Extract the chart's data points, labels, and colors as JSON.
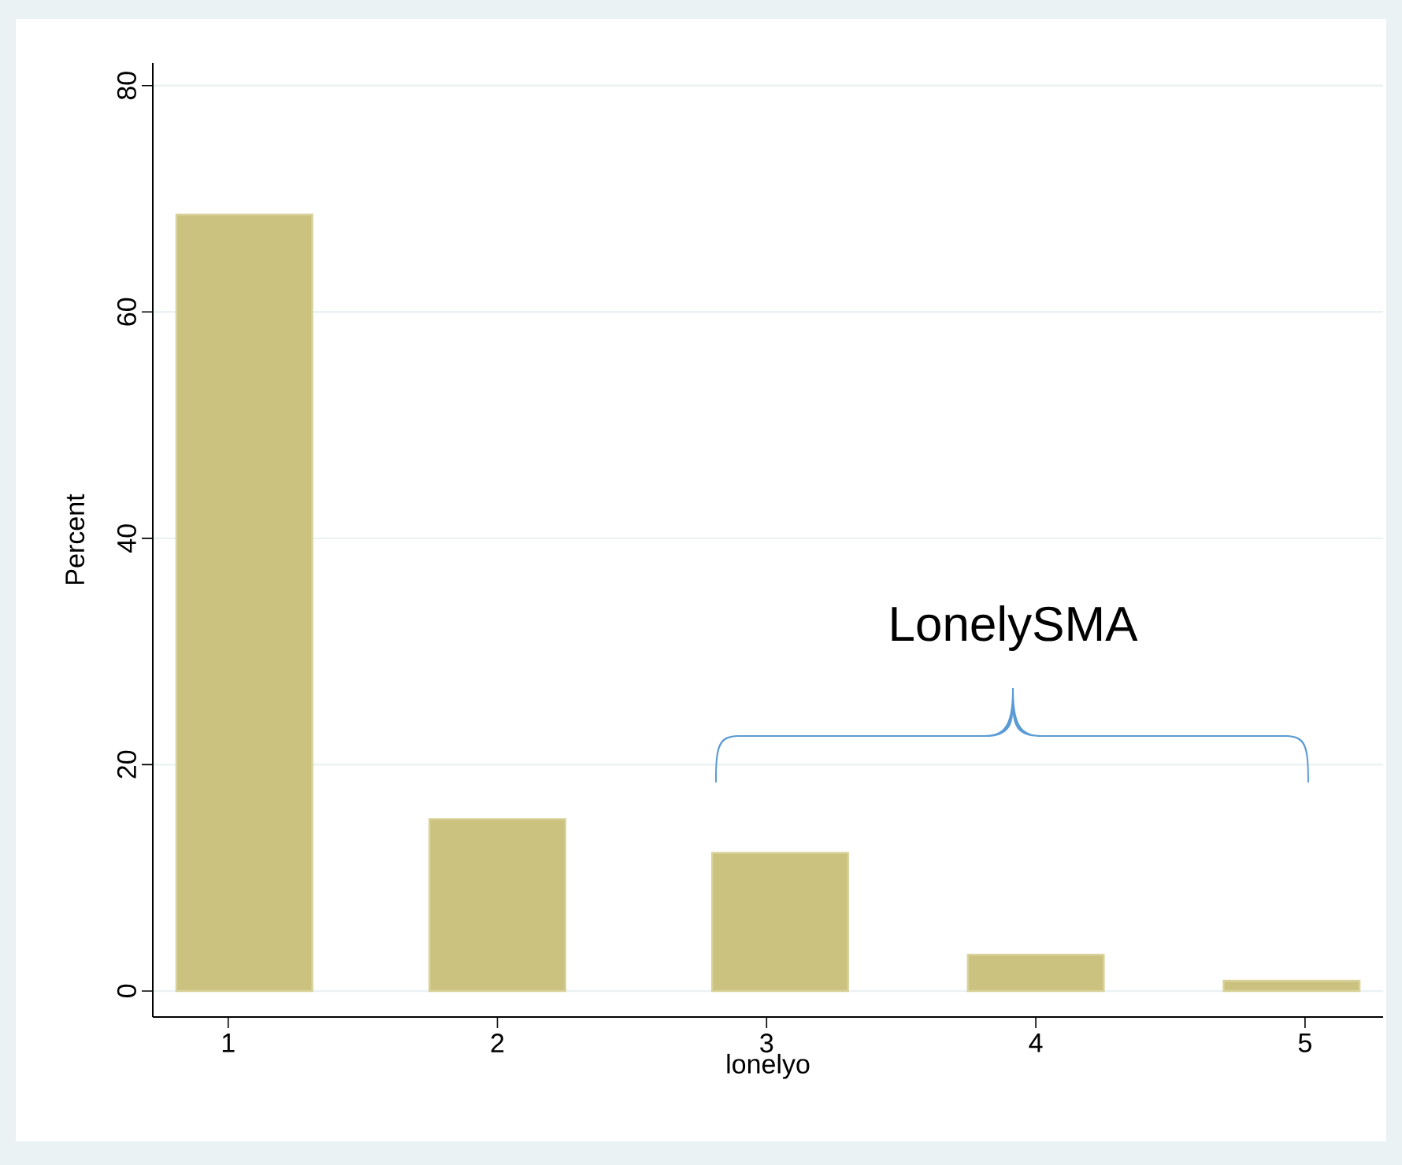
{
  "chart_data": {
    "type": "bar",
    "xlabel": "lonelyo",
    "ylabel": "Percent",
    "x": [
      1.06,
      2.0,
      3.05,
      4.0,
      4.95
    ],
    "values": [
      68.6,
      15.2,
      12.2,
      3.2,
      0.9
    ],
    "color": "#cbc280",
    "xlim": [
      0.72,
      5.29
    ],
    "ylim": [
      -2.3,
      82
    ],
    "xticks": [
      1,
      2,
      3,
      4,
      5
    ],
    "yticks": [
      0,
      20,
      40,
      60,
      80
    ],
    "grid": "y",
    "annotations": [
      "LonelySMA"
    ]
  }
}
